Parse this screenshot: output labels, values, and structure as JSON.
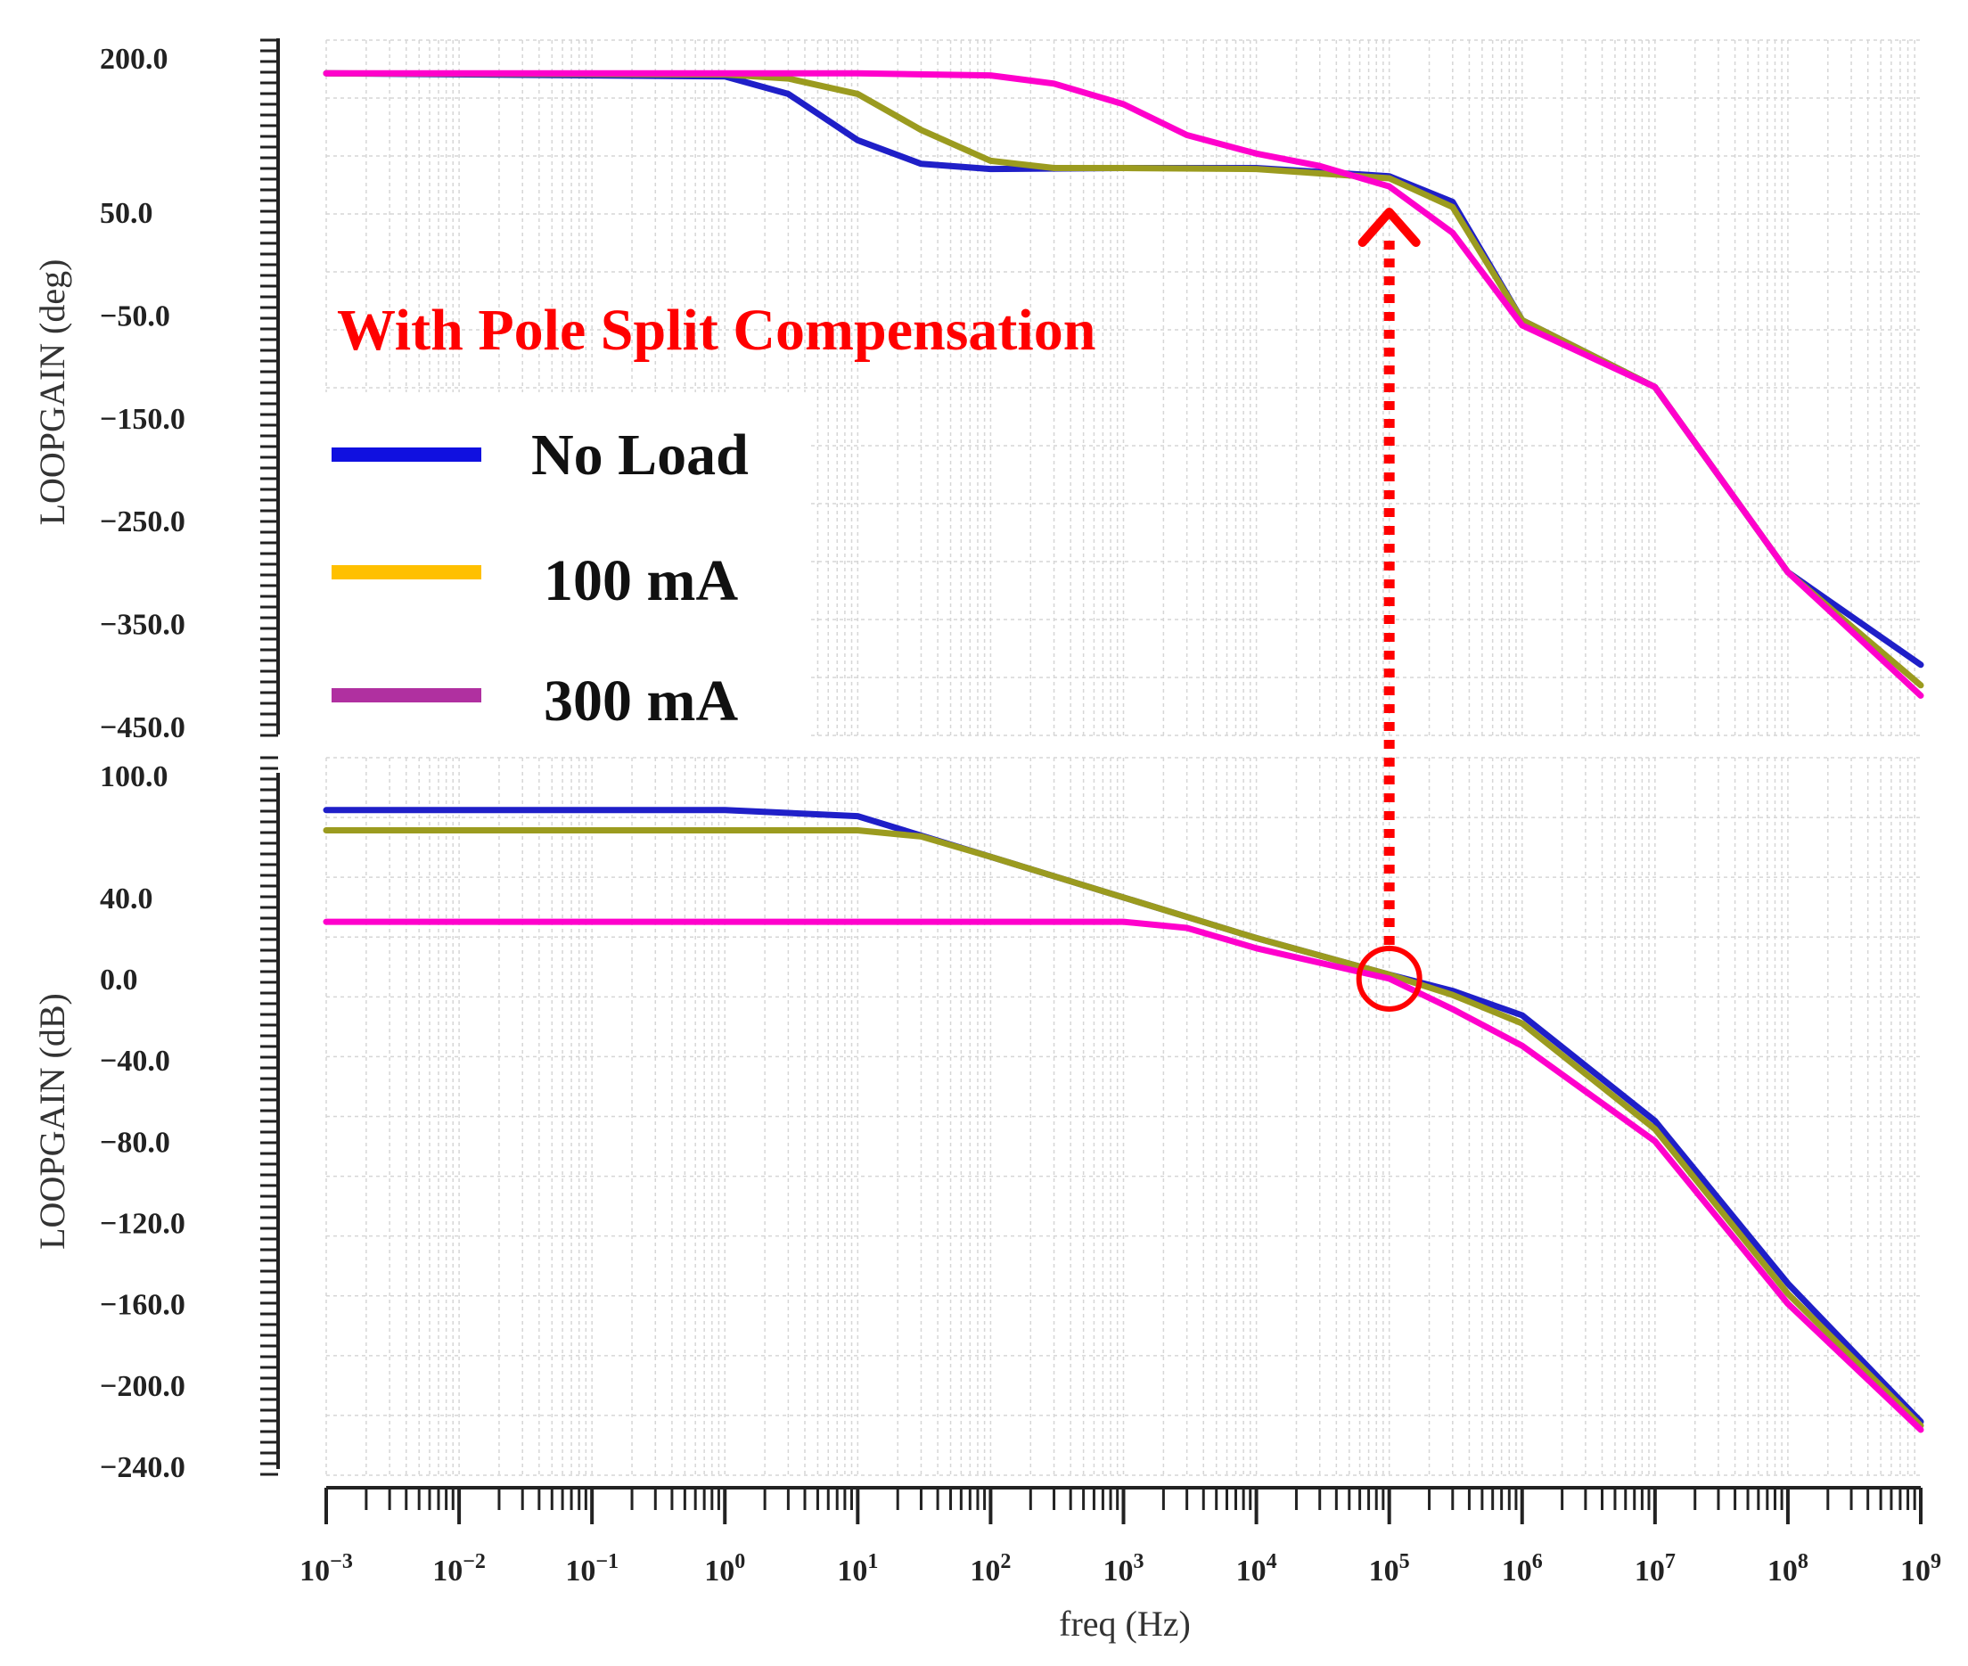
{
  "chart_data": [
    {
      "type": "line",
      "ylabel": "LOOPGAIN (deg)",
      "ylim": [
        -450,
        200
      ],
      "y_tick_labels": [
        "200.0",
        "50.0",
        "−50.0",
        "−150.0",
        "−250.0",
        "−350.0",
        "−450.0"
      ],
      "y_tick_values": [
        200,
        50,
        -50,
        -150,
        -250,
        -350,
        -450
      ],
      "x_scale": "log",
      "xlim": [
        0.001,
        1000000000
      ],
      "grid": true,
      "series": [
        {
          "name": "No Load",
          "color": "#1f1fc8",
          "x": [
            0.001,
            1,
            3,
            10,
            30,
            100,
            1000,
            10000,
            100000,
            300000,
            1000000,
            10000000,
            100000000,
            1000000000
          ],
          "y": [
            185,
            182,
            165,
            120,
            97,
            92,
            93,
            93,
            85,
            60,
            -55,
            -120,
            -300,
            -390
          ]
        },
        {
          "name": "100 mA",
          "color": "#9b9b1f",
          "x": [
            0.001,
            1,
            3,
            10,
            30,
            100,
            300,
            1000,
            10000,
            100000,
            300000,
            1000000,
            10000000,
            100000000,
            1000000000
          ],
          "y": [
            185,
            184,
            180,
            165,
            130,
            100,
            93,
            93,
            92,
            83,
            55,
            -55,
            -120,
            -300,
            -410
          ]
        },
        {
          "name": "300 mA",
          "color": "#ff00cc",
          "x": [
            0.001,
            10,
            100,
            300,
            1000,
            3000,
            10000,
            30000,
            100000,
            300000,
            1000000,
            10000000,
            100000000,
            1000000000
          ],
          "y": [
            185,
            185,
            183,
            175,
            155,
            125,
            107,
            95,
            75,
            30,
            -60,
            -120,
            -300,
            -420
          ]
        }
      ]
    },
    {
      "type": "line",
      "xlabel": "freq (Hz)",
      "ylabel": "LOOPGAIN (dB)",
      "ylim": [
        -240,
        100
      ],
      "y_tick_labels": [
        "100.0",
        "40.0",
        "0.0",
        "−40.0",
        "−80.0",
        "−120.0",
        "−160.0",
        "−200.0",
        "−240.0"
      ],
      "y_tick_values": [
        100,
        40,
        0,
        -40,
        -80,
        -120,
        -160,
        -200,
        -240
      ],
      "x_scale": "log",
      "xlim": [
        0.001,
        1000000000
      ],
      "x_tick_exponents": [
        "−3",
        "−2",
        "−1",
        "0",
        "1",
        "2",
        "3",
        "4",
        "5",
        "6",
        "7",
        "8",
        "9"
      ],
      "grid": true,
      "series": [
        {
          "name": "No Load",
          "color": "#1f1fc8",
          "x": [
            0.001,
            1,
            10,
            100,
            1000,
            10000,
            100000,
            300000,
            1000000,
            10000000,
            100000000,
            1000000000
          ],
          "y": [
            83,
            83,
            80,
            60,
            40,
            20,
            2,
            -6,
            -18,
            -70,
            -150,
            -218
          ]
        },
        {
          "name": "100 mA",
          "color": "#9b9b1f",
          "x": [
            0.001,
            10,
            30,
            100,
            1000,
            10000,
            100000,
            300000,
            1000000,
            10000000,
            100000000,
            1000000000
          ],
          "y": [
            73,
            73,
            70,
            60,
            40,
            20,
            2,
            -8,
            -22,
            -74,
            -155,
            -220
          ]
        },
        {
          "name": "300 mA",
          "color": "#ff00cc",
          "x": [
            0.001,
            1000,
            3000,
            10000,
            100000,
            300000,
            1000000,
            10000000,
            100000000,
            1000000000
          ],
          "y": [
            28,
            28,
            25,
            15,
            0,
            -15,
            -33,
            -80,
            -160,
            -222
          ]
        }
      ]
    }
  ],
  "annotation": {
    "text": "With Pole Split Compensation",
    "color": "#ff0000"
  },
  "legend": [
    {
      "label": "No Load",
      "color": "#1010e0"
    },
    {
      "label": "100 mA",
      "color": "#ffc000"
    },
    {
      "label": "300 mA",
      "color": "#b030a0"
    }
  ],
  "marker": {
    "x": 100000,
    "color": "#ff0000"
  }
}
